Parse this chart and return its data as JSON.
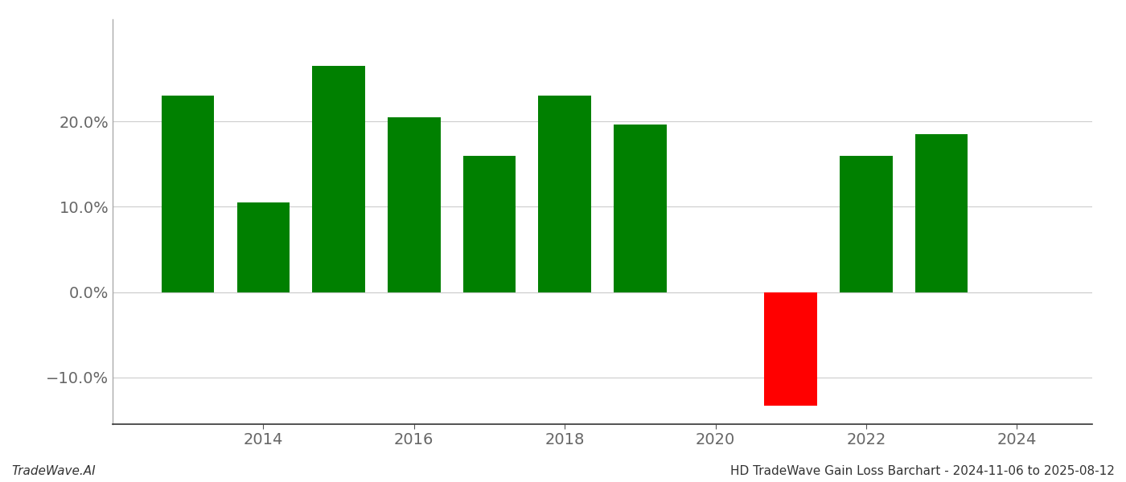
{
  "years": [
    2013,
    2014,
    2015,
    2016,
    2017,
    2018,
    2019,
    2021,
    2022,
    2023
  ],
  "values": [
    0.23,
    0.105,
    0.265,
    0.205,
    0.16,
    0.23,
    0.197,
    -0.133,
    0.16,
    0.185
  ],
  "colors": [
    "#008000",
    "#008000",
    "#008000",
    "#008000",
    "#008000",
    "#008000",
    "#008000",
    "#ff0000",
    "#008000",
    "#008000"
  ],
  "bar_width": 0.7,
  "ylim": [
    -0.155,
    0.32
  ],
  "yticks": [
    -0.1,
    0.0,
    0.1,
    0.2
  ],
  "xlim": [
    2012.0,
    2025.0
  ],
  "xticks": [
    2014,
    2016,
    2018,
    2020,
    2022,
    2024
  ],
  "footer_left": "TradeWave.AI",
  "footer_right": "HD TradeWave Gain Loss Barchart - 2024-11-06 to 2025-08-12",
  "footer_fontsize": 11,
  "grid_color": "#cccccc",
  "background_color": "#ffffff",
  "tick_label_color": "#666666",
  "tick_fontsize": 14
}
